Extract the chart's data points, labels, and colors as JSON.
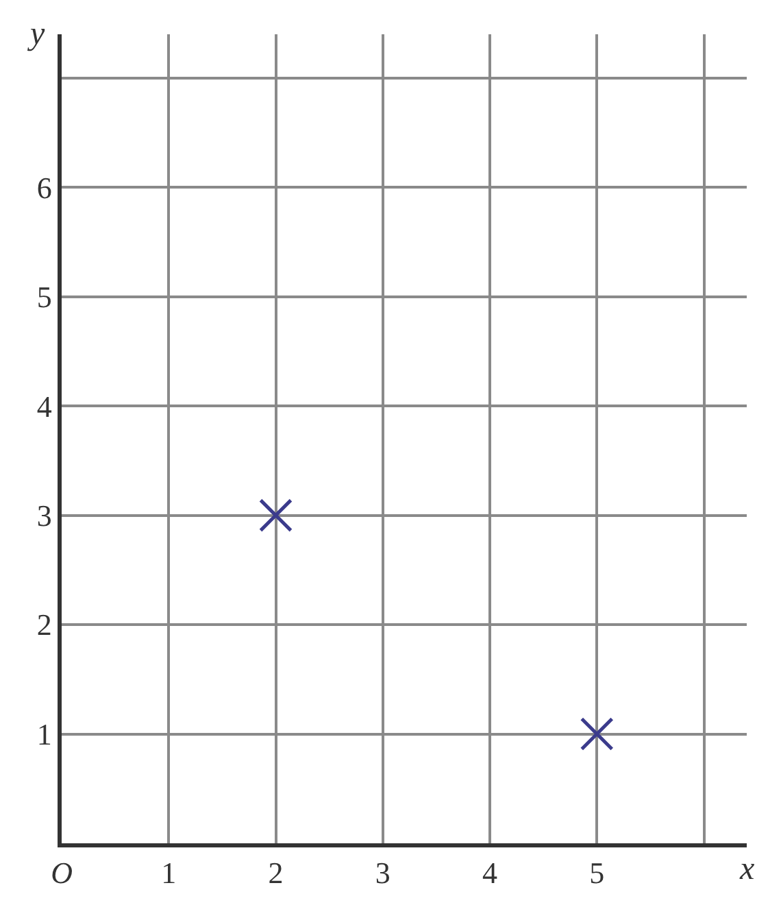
{
  "chart_data": {
    "type": "scatter",
    "xlabel": "x",
    "ylabel": "y",
    "x": [
      2,
      5
    ],
    "values": [
      3,
      1
    ],
    "color": "#3b3b8c",
    "marker": "cross",
    "xlim": [
      0,
      6.4
    ],
    "ylim": [
      0,
      7.4
    ],
    "xticks": [
      {
        "value": 0,
        "label": "O"
      },
      1,
      2,
      3,
      4,
      5,
      {
        "value": 6,
        "label": null
      }
    ],
    "yticks": [
      1,
      2,
      3,
      4,
      5,
      6,
      {
        "value": 7,
        "label": null
      }
    ],
    "grid": true,
    "legend": false
  }
}
